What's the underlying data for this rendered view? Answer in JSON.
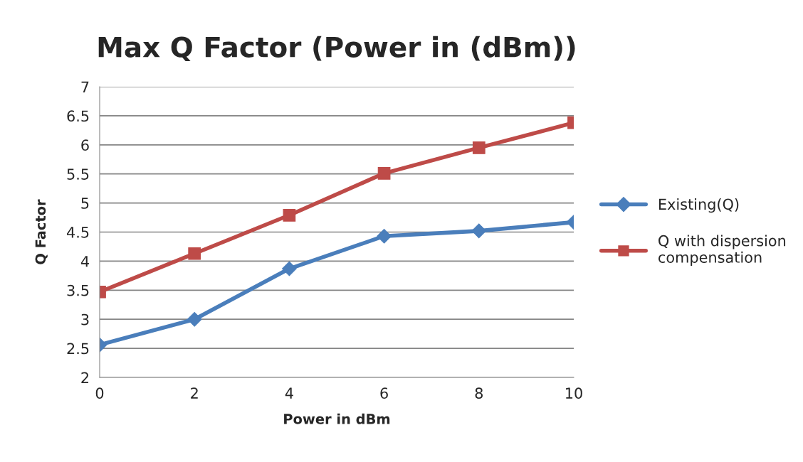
{
  "chart_data": {
    "type": "line",
    "title": "Max Q Factor (Power in (dBm))",
    "xlabel": "Power in dBm",
    "ylabel": "Q Factor",
    "x": [
      0,
      2,
      4,
      6,
      8,
      10
    ],
    "series": [
      {
        "name": "Existing(Q)",
        "color": "#4a7ebb",
        "marker": "diamond",
        "values": [
          2.56,
          3.0,
          3.87,
          4.43,
          4.52,
          4.67
        ]
      },
      {
        "name": "Q with dispersion\ncompensation",
        "color": "#be4b48",
        "marker": "square",
        "values": [
          3.47,
          4.13,
          4.79,
          5.51,
          5.95,
          6.38
        ]
      }
    ],
    "xlim": [
      0,
      10
    ],
    "xticks": [
      0,
      2,
      4,
      6,
      8,
      10
    ],
    "ylim": [
      2,
      7
    ],
    "yticks": [
      2,
      2.5,
      3,
      3.5,
      4,
      4.5,
      5,
      5.5,
      6,
      6.5,
      7
    ],
    "grid": "y",
    "legend": "right"
  }
}
